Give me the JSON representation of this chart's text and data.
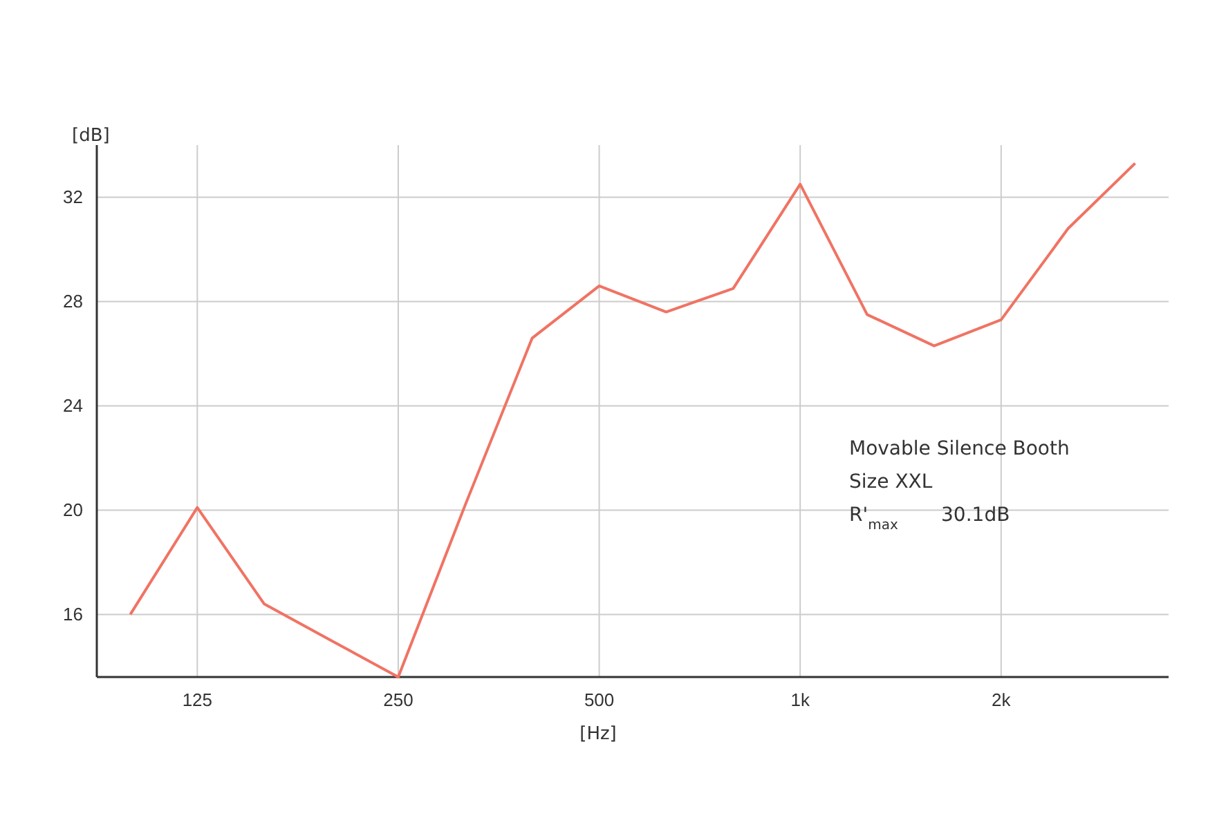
{
  "chart_data": {
    "type": "line",
    "xlabel": "[Hz]",
    "ylabel": "[dB]",
    "categories": [
      null,
      "125",
      null,
      null,
      "250",
      null,
      null,
      "500",
      null,
      null,
      "1k",
      null,
      null,
      "2k",
      null,
      null
    ],
    "series": [
      {
        "color": "#f07363",
        "values": [
          16.0,
          20.1,
          16.4,
          15.0,
          13.6,
          20.2,
          26.6,
          28.6,
          27.6,
          28.5,
          32.5,
          27.5,
          26.3,
          27.3,
          30.8,
          33.3
        ]
      }
    ],
    "ylim": [
      13.6,
      34
    ],
    "yticks": [
      16,
      20,
      24,
      28,
      32
    ],
    "grid": true,
    "marker": "none",
    "line_style": "solid",
    "annotations": [
      "Movable Silence Booth",
      "Size XXL",
      "R'$_{max}$       30.1dB"
    ]
  }
}
